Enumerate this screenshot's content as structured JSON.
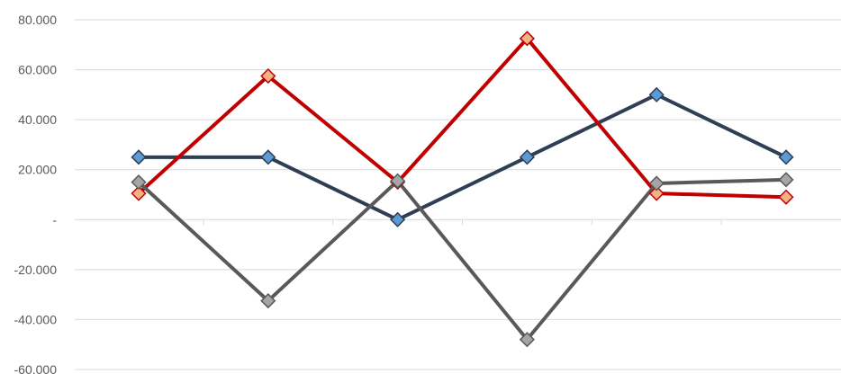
{
  "chart_data": {
    "type": "line",
    "title": "",
    "xlabel": "",
    "ylabel": "",
    "ylim": [
      -60000,
      80000
    ],
    "ytick_values": [
      80000,
      60000,
      40000,
      20000,
      0,
      -20000,
      -40000,
      -60000
    ],
    "ytick_labels": [
      "80.000",
      "60.000",
      "40.000",
      "20.000",
      "-",
      "-20.000",
      "-40.000",
      "-60.000"
    ],
    "categories": [
      "",
      "",
      "",
      "",
      "",
      ""
    ],
    "grid": true,
    "legend": "none",
    "series": [
      {
        "color": "#2f3e55",
        "marker_fill": "#5b9bd5",
        "values": [
          25000,
          25000,
          0,
          25000,
          50000,
          25000
        ]
      },
      {
        "color": "#c00000",
        "marker_fill": "#f4b183",
        "values": [
          10500,
          57500,
          15000,
          72500,
          10500,
          9000
        ]
      },
      {
        "color": "#595959",
        "marker_fill": "#a5a5a5",
        "values": [
          15000,
          -32500,
          15500,
          -48000,
          14500,
          16000
        ]
      }
    ]
  }
}
